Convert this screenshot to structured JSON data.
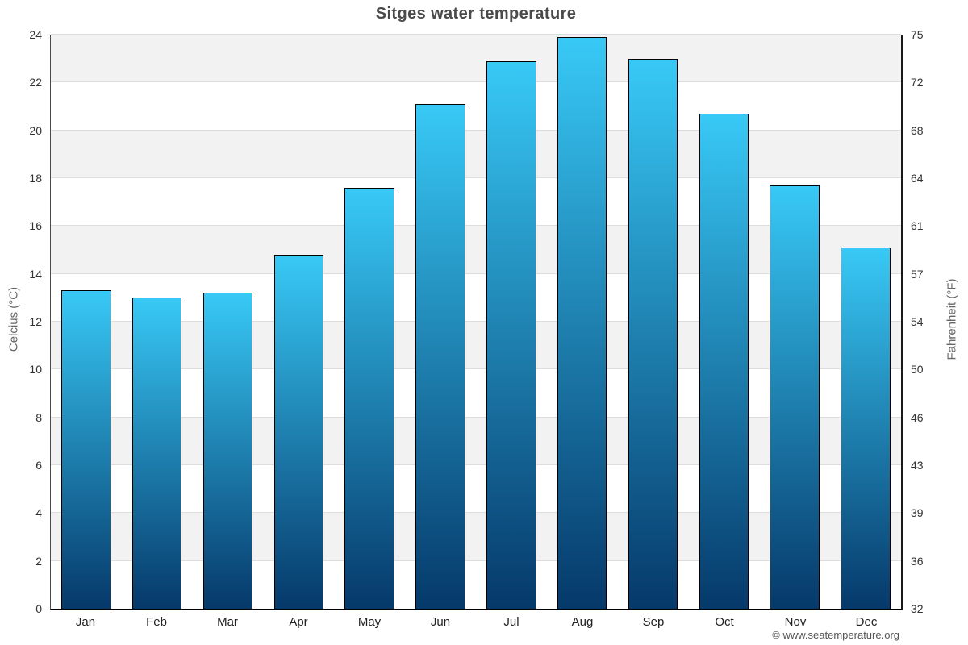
{
  "chart_data": {
    "type": "bar",
    "title": "Sitges water temperature",
    "categories": [
      "Jan",
      "Feb",
      "Mar",
      "Apr",
      "May",
      "Jun",
      "Jul",
      "Aug",
      "Sep",
      "Oct",
      "Nov",
      "Dec"
    ],
    "values": [
      13.3,
      13.0,
      13.2,
      14.8,
      17.6,
      21.1,
      22.9,
      23.9,
      23.0,
      20.7,
      17.7,
      15.1
    ],
    "ylabel_left": "Celcius (°C)",
    "ylabel_right": "Fahrenheit (°F)",
    "ylim": [
      0,
      24
    ],
    "yticks_celsius": [
      0,
      2,
      4,
      6,
      8,
      10,
      12,
      14,
      16,
      18,
      20,
      22,
      24
    ],
    "yticks_fahrenheit": [
      32,
      36,
      39,
      43,
      46,
      50,
      54,
      57,
      61,
      64,
      68,
      72,
      75
    ],
    "grid": "horizontal gridlines every 2°C with alternating background bands",
    "legend": "none",
    "colors": {
      "bar_gradient_top": "#38c9f6",
      "bar_gradient_bottom": "#05396a",
      "bar_border": "#000000",
      "band_gray": "#f2f2f2",
      "band_white": "#ffffff",
      "gridline": "#dddddd",
      "title": "#4a4a4a",
      "tick_text": "#333333",
      "axis_label_text": "#666666"
    }
  },
  "footer": {
    "copyright": "© www.seatemperature.org"
  }
}
